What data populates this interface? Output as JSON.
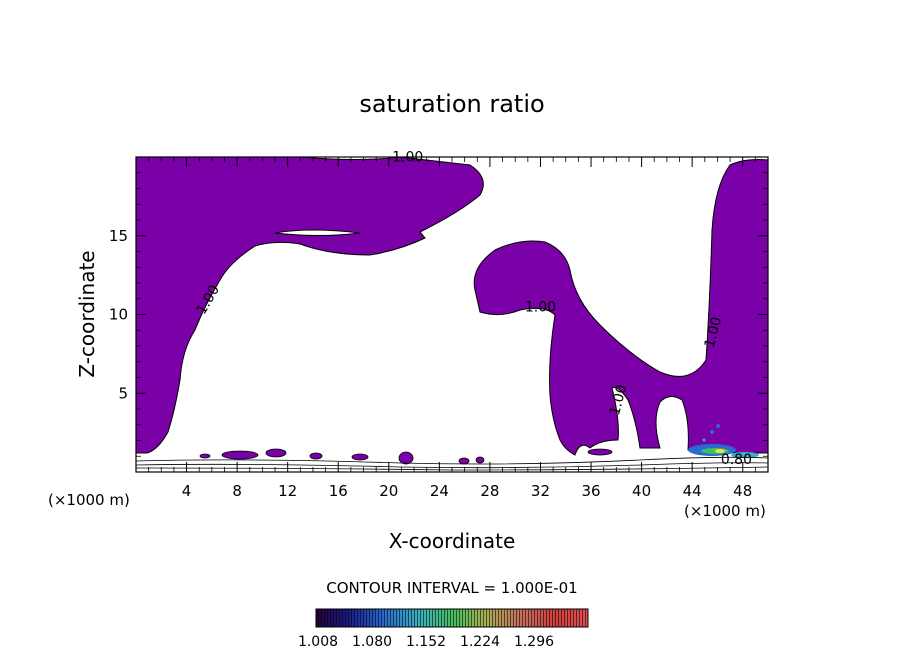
{
  "chart_data": {
    "type": "contour",
    "title": "saturation ratio",
    "xlabel": "X-coordinate",
    "ylabel": "Z-coordinate",
    "x_unit_left": "(×1000 m)",
    "x_unit_right": "(×1000 m)",
    "xlim": [
      0,
      50
    ],
    "ylim": [
      0,
      20
    ],
    "x_ticks": [
      4,
      8,
      12,
      16,
      20,
      24,
      28,
      32,
      36,
      40,
      44,
      48
    ],
    "y_ticks": [
      5,
      10,
      15
    ],
    "contour_labels": [
      {
        "text": "1.00",
        "x": 21.5,
        "y": 19.7
      },
      {
        "text": "1.00",
        "x": 6.0,
        "y": 10.8
      },
      {
        "text": "1.00",
        "x": 32.0,
        "y": 10.2
      },
      {
        "text": "1.00",
        "x": 46.0,
        "y": 8.8
      },
      {
        "text": "1.00",
        "x": 38.5,
        "y": 4.5
      },
      {
        "text": "0.80",
        "x": 47.5,
        "y": 0.5
      }
    ],
    "fill_color": "#7a00a8",
    "contour_interval_label": "CONTOUR INTERVAL = 1.000E-01",
    "colorbar": {
      "tick_labels": [
        "1.008",
        "1.080",
        "1.152",
        "1.224",
        "1.296"
      ],
      "min": 1.008,
      "max": 1.296
    }
  }
}
